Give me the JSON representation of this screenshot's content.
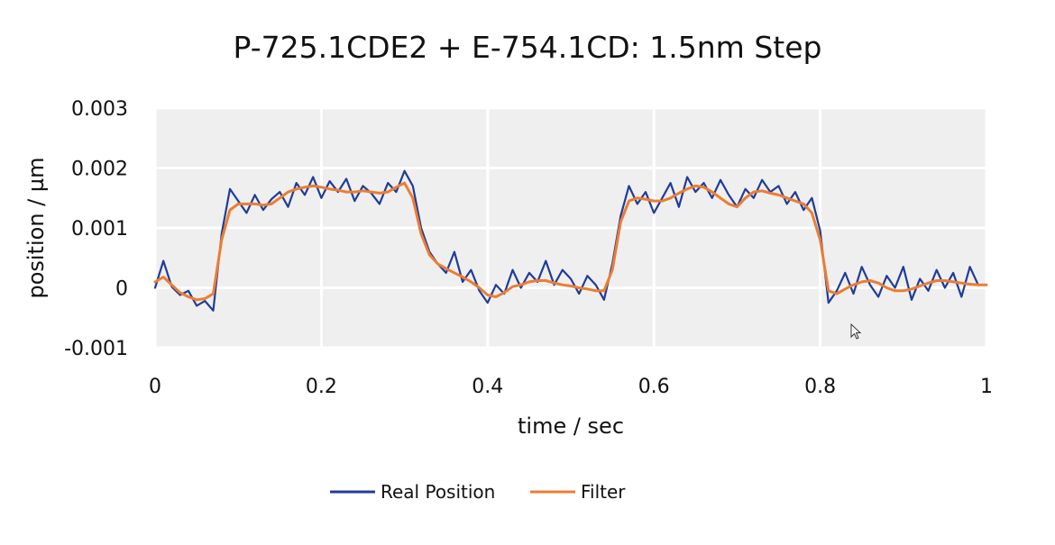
{
  "chart_data": {
    "type": "line",
    "title": "P-725.1CDE2 + E-754.1CD:  1.5nm Step",
    "xlabel": "time / sec",
    "ylabel": "position / µm",
    "xlim": [
      0,
      1
    ],
    "ylim": [
      -0.001,
      0.003
    ],
    "x_ticks": [
      "0",
      "0.2",
      "0.4",
      "0.6",
      "0.8",
      "1"
    ],
    "y_ticks": [
      "0.003",
      "0.002",
      "0.001",
      "0",
      "-0.001"
    ],
    "grid": true,
    "legend_position": "bottom",
    "series": [
      {
        "name": "Real Position",
        "color": "#1f3c9a",
        "x": [
          0,
          0.01,
          0.02,
          0.03,
          0.04,
          0.05,
          0.06,
          0.07,
          0.08,
          0.09,
          0.1,
          0.11,
          0.12,
          0.13,
          0.14,
          0.15,
          0.16,
          0.17,
          0.18,
          0.19,
          0.2,
          0.21,
          0.22,
          0.23,
          0.24,
          0.25,
          0.26,
          0.27,
          0.28,
          0.29,
          0.3,
          0.31,
          0.32,
          0.33,
          0.34,
          0.35,
          0.36,
          0.37,
          0.38,
          0.39,
          0.4,
          0.41,
          0.42,
          0.43,
          0.44,
          0.45,
          0.46,
          0.47,
          0.48,
          0.49,
          0.5,
          0.51,
          0.52,
          0.53,
          0.54,
          0.55,
          0.56,
          0.57,
          0.58,
          0.59,
          0.6,
          0.61,
          0.62,
          0.63,
          0.64,
          0.65,
          0.66,
          0.67,
          0.68,
          0.69,
          0.7,
          0.71,
          0.72,
          0.73,
          0.74,
          0.75,
          0.76,
          0.77,
          0.78,
          0.79,
          0.8,
          0.81,
          0.82,
          0.83,
          0.84,
          0.85,
          0.86,
          0.87,
          0.88,
          0.89,
          0.9,
          0.91,
          0.92,
          0.93,
          0.94,
          0.95,
          0.96,
          0.97,
          0.98,
          0.99,
          1.0
        ],
        "y": [
          0.0,
          0.00045,
          2e-05,
          -0.00012,
          -5e-05,
          -0.0003,
          -0.00022,
          -0.00038,
          0.0009,
          0.00165,
          0.00145,
          0.00125,
          0.00155,
          0.0013,
          0.00148,
          0.0016,
          0.00135,
          0.00175,
          0.00155,
          0.00185,
          0.0015,
          0.00178,
          0.0016,
          0.00182,
          0.00145,
          0.0017,
          0.00158,
          0.0014,
          0.00175,
          0.0016,
          0.00195,
          0.0017,
          0.001,
          0.0006,
          0.0004,
          0.00025,
          0.0006,
          0.0001,
          0.0003,
          -5e-05,
          -0.00025,
          5e-05,
          -0.0001,
          0.0003,
          0.0,
          0.00025,
          0.0001,
          0.00045,
          5e-05,
          0.0003,
          0.00015,
          -0.0001,
          0.0002,
          5e-05,
          -0.0002,
          0.0004,
          0.0012,
          0.0017,
          0.0014,
          0.0016,
          0.00125,
          0.0015,
          0.00175,
          0.00135,
          0.00185,
          0.0016,
          0.00175,
          0.0015,
          0.0018,
          0.00155,
          0.00135,
          0.00165,
          0.0015,
          0.0018,
          0.0016,
          0.0017,
          0.0014,
          0.0016,
          0.0013,
          0.0015,
          0.00095,
          -0.00025,
          -5e-05,
          0.00025,
          -0.0001,
          0.00035,
          5e-05,
          -0.00015,
          0.0002,
          0.0,
          0.00035,
          -0.0002,
          0.00015,
          -5e-05,
          0.0003,
          0.0,
          0.00025,
          -0.00015,
          0.00035,
          5e-05,
          5e-05
        ]
      },
      {
        "name": "Filter",
        "color": "#ed7d31",
        "x": [
          0,
          0.01,
          0.02,
          0.03,
          0.04,
          0.05,
          0.06,
          0.07,
          0.08,
          0.09,
          0.1,
          0.11,
          0.12,
          0.13,
          0.14,
          0.15,
          0.16,
          0.17,
          0.18,
          0.19,
          0.2,
          0.21,
          0.22,
          0.23,
          0.24,
          0.25,
          0.26,
          0.27,
          0.28,
          0.29,
          0.3,
          0.31,
          0.32,
          0.33,
          0.34,
          0.35,
          0.36,
          0.37,
          0.38,
          0.39,
          0.4,
          0.41,
          0.42,
          0.43,
          0.44,
          0.45,
          0.46,
          0.47,
          0.48,
          0.49,
          0.5,
          0.51,
          0.52,
          0.53,
          0.54,
          0.55,
          0.56,
          0.57,
          0.58,
          0.59,
          0.6,
          0.61,
          0.62,
          0.63,
          0.64,
          0.65,
          0.66,
          0.67,
          0.68,
          0.69,
          0.7,
          0.71,
          0.72,
          0.73,
          0.74,
          0.75,
          0.76,
          0.77,
          0.78,
          0.79,
          0.8,
          0.81,
          0.82,
          0.83,
          0.84,
          0.85,
          0.86,
          0.87,
          0.88,
          0.89,
          0.9,
          0.91,
          0.92,
          0.93,
          0.94,
          0.95,
          0.96,
          0.97,
          0.98,
          0.99,
          1.0
        ],
        "y": [
          0.0001,
          0.00018,
          5e-05,
          -8e-05,
          -0.00015,
          -0.0002,
          -0.00018,
          -0.0001,
          0.0008,
          0.0013,
          0.0014,
          0.0014,
          0.0014,
          0.00138,
          0.0014,
          0.0015,
          0.0016,
          0.00165,
          0.00168,
          0.0017,
          0.00168,
          0.00165,
          0.00163,
          0.0016,
          0.0016,
          0.00162,
          0.0016,
          0.00158,
          0.0016,
          0.00168,
          0.00175,
          0.0015,
          0.0009,
          0.00055,
          0.0004,
          0.00032,
          0.00025,
          0.00018,
          0.0001,
          0.0,
          -0.00012,
          -0.00015,
          -8e-05,
          2e-05,
          5e-05,
          0.0001,
          0.00012,
          0.00012,
          8e-05,
          5e-05,
          3e-05,
          0.0,
          -2e-05,
          -5e-05,
          -5e-05,
          0.0003,
          0.0011,
          0.00145,
          0.0015,
          0.00148,
          0.00145,
          0.00145,
          0.0015,
          0.00158,
          0.00165,
          0.0017,
          0.00168,
          0.0016,
          0.0015,
          0.0014,
          0.00135,
          0.0015,
          0.0016,
          0.00162,
          0.00158,
          0.00155,
          0.0015,
          0.00145,
          0.0014,
          0.00125,
          0.0008,
          -5e-05,
          -0.0001,
          -2e-05,
          5e-05,
          0.0001,
          0.00012,
          8e-05,
          0.0,
          -5e-05,
          -5e-05,
          -2e-05,
          3e-05,
          8e-05,
          0.00012,
          0.00012,
          0.0001,
          8e-05,
          6e-05,
          5e-05,
          5e-05
        ]
      }
    ]
  }
}
